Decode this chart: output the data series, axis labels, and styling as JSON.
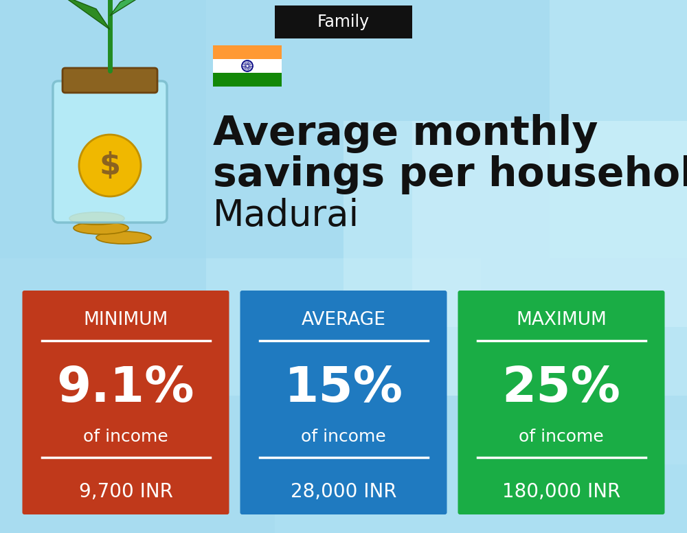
{
  "title_tag": "Family",
  "title_tag_bg": "#111111",
  "title_tag_fg": "#ffffff",
  "heading_line1": "Average monthly",
  "heading_line2": "savings per household in",
  "heading_city": "Madurai",
  "bg_color": "#9DDFF0",
  "cards": [
    {
      "label": "MINIMUM",
      "percent": "9.1%",
      "sub": "of income",
      "amount": "9,700 INR",
      "color": "#C0391B"
    },
    {
      "label": "AVERAGE",
      "percent": "15%",
      "sub": "of income",
      "amount": "28,000 INR",
      "color": "#1F7AC0"
    },
    {
      "label": "MAXIMUM",
      "percent": "25%",
      "sub": "of income",
      "amount": "180,000 INR",
      "color": "#1AAD45"
    }
  ]
}
